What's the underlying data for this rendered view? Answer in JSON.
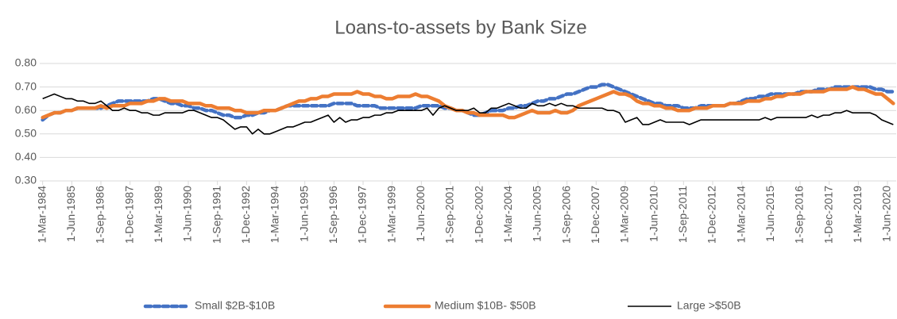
{
  "chart_data": {
    "type": "line",
    "title": "Loans-to-assets by Bank Size",
    "categories": [
      "1-Mar-1984",
      null,
      null,
      null,
      null,
      "1-Jun-1985",
      null,
      null,
      null,
      null,
      "1-Sep-1986",
      null,
      null,
      null,
      null,
      "1-Dec-1987",
      null,
      null,
      null,
      null,
      "1-Mar-1989",
      null,
      null,
      null,
      null,
      "1-Jun-1990",
      null,
      null,
      null,
      null,
      "1-Sep-1991",
      null,
      null,
      null,
      null,
      "1-Dec-1992",
      null,
      null,
      null,
      null,
      "1-Mar-1994",
      null,
      null,
      null,
      null,
      "1-Jun-1995",
      null,
      null,
      null,
      null,
      "1-Sep-1996",
      null,
      null,
      null,
      null,
      "1-Dec-1997",
      null,
      null,
      null,
      null,
      "1-Mar-1999",
      null,
      null,
      null,
      null,
      "1-Jun-2000",
      null,
      null,
      null,
      null,
      "1-Sep-2001",
      null,
      null,
      null,
      null,
      "1-Dec-2002",
      null,
      null,
      null,
      null,
      "1-Mar-2004",
      null,
      null,
      null,
      null,
      "1-Jun-2005",
      null,
      null,
      null,
      null,
      "1-Sep-2006",
      null,
      null,
      null,
      null,
      "1-Dec-2007",
      null,
      null,
      null,
      null,
      "1-Mar-2009",
      null,
      null,
      null,
      null,
      "1-Jun-2010",
      null,
      null,
      null,
      null,
      "1-Sep-2011",
      null,
      null,
      null,
      null,
      "1-Dec-2012",
      null,
      null,
      null,
      null,
      "1-Mar-2014",
      null,
      null,
      null,
      null,
      "1-Jun-2015",
      null,
      null,
      null,
      null,
      "1-Sep-2016",
      null,
      null,
      null,
      null,
      "1-Dec-2017",
      null,
      null,
      null,
      null,
      "1-Mar-2019",
      null,
      null,
      null,
      null,
      "1-Jun-2020",
      null
    ],
    "series": [
      {
        "name": "Small $2B-$10B",
        "color": "#4472c4",
        "values": [
          0.56,
          0.58,
          0.59,
          0.59,
          0.6,
          0.6,
          0.61,
          0.61,
          0.61,
          0.61,
          0.61,
          0.62,
          0.63,
          0.64,
          0.64,
          0.64,
          0.64,
          0.64,
          0.64,
          0.65,
          0.65,
          0.64,
          0.63,
          0.63,
          0.62,
          0.62,
          0.61,
          0.61,
          0.6,
          0.6,
          0.59,
          0.58,
          0.58,
          0.57,
          0.57,
          0.58,
          0.58,
          0.59,
          0.59,
          0.6,
          0.6,
          0.61,
          0.62,
          0.62,
          0.62,
          0.62,
          0.62,
          0.62,
          0.62,
          0.62,
          0.63,
          0.63,
          0.63,
          0.63,
          0.62,
          0.62,
          0.62,
          0.62,
          0.61,
          0.61,
          0.61,
          0.61,
          0.61,
          0.61,
          0.61,
          0.62,
          0.62,
          0.62,
          0.62,
          0.61,
          0.61,
          0.6,
          0.6,
          0.59,
          0.58,
          0.58,
          0.59,
          0.6,
          0.6,
          0.6,
          0.61,
          0.61,
          0.62,
          0.62,
          0.63,
          0.64,
          0.64,
          0.65,
          0.65,
          0.66,
          0.67,
          0.67,
          0.68,
          0.69,
          0.7,
          0.7,
          0.71,
          0.71,
          0.7,
          0.69,
          0.68,
          0.67,
          0.66,
          0.65,
          0.64,
          0.63,
          0.63,
          0.62,
          0.62,
          0.62,
          0.61,
          0.61,
          0.61,
          0.62,
          0.62,
          0.62,
          0.62,
          0.62,
          0.63,
          0.63,
          0.64,
          0.65,
          0.65,
          0.66,
          0.66,
          0.67,
          0.67,
          0.67,
          0.67,
          0.67,
          0.68,
          0.68,
          0.68,
          0.69,
          0.69,
          0.69,
          0.7,
          0.7,
          0.7,
          0.7,
          0.7,
          0.7,
          0.7,
          0.69,
          0.69,
          0.68,
          0.68
        ]
      },
      {
        "name": "Medium $10B- $50B",
        "color": "#ed7d31",
        "values": [
          0.57,
          0.58,
          0.59,
          0.59,
          0.6,
          0.6,
          0.61,
          0.61,
          0.61,
          0.61,
          0.62,
          0.61,
          0.62,
          0.62,
          0.62,
          0.63,
          0.63,
          0.63,
          0.64,
          0.64,
          0.65,
          0.65,
          0.64,
          0.64,
          0.64,
          0.63,
          0.63,
          0.63,
          0.62,
          0.62,
          0.61,
          0.61,
          0.61,
          0.6,
          0.6,
          0.59,
          0.59,
          0.59,
          0.6,
          0.6,
          0.6,
          0.61,
          0.62,
          0.63,
          0.64,
          0.64,
          0.65,
          0.65,
          0.66,
          0.66,
          0.67,
          0.67,
          0.67,
          0.67,
          0.68,
          0.67,
          0.67,
          0.66,
          0.66,
          0.65,
          0.65,
          0.66,
          0.66,
          0.66,
          0.67,
          0.66,
          0.66,
          0.65,
          0.64,
          0.62,
          0.61,
          0.6,
          0.6,
          0.59,
          0.59,
          0.58,
          0.58,
          0.58,
          0.58,
          0.58,
          0.57,
          0.57,
          0.58,
          0.59,
          0.6,
          0.59,
          0.59,
          0.59,
          0.6,
          0.59,
          0.59,
          0.6,
          0.62,
          0.63,
          0.64,
          0.65,
          0.66,
          0.67,
          0.68,
          0.67,
          0.67,
          0.66,
          0.64,
          0.63,
          0.63,
          0.62,
          0.62,
          0.61,
          0.61,
          0.6,
          0.6,
          0.6,
          0.61,
          0.61,
          0.61,
          0.62,
          0.62,
          0.62,
          0.63,
          0.63,
          0.63,
          0.64,
          0.64,
          0.64,
          0.65,
          0.65,
          0.66,
          0.66,
          0.67,
          0.67,
          0.67,
          0.68,
          0.68,
          0.68,
          0.68,
          0.69,
          0.69,
          0.69,
          0.69,
          0.7,
          0.69,
          0.69,
          0.68,
          0.67,
          0.67,
          0.65,
          0.63
        ]
      },
      {
        "name": "Large >$50B",
        "color": "#000000",
        "values": [
          0.65,
          0.66,
          0.67,
          0.66,
          0.65,
          0.65,
          0.64,
          0.64,
          0.63,
          0.63,
          0.64,
          0.62,
          0.6,
          0.6,
          0.61,
          0.6,
          0.6,
          0.59,
          0.59,
          0.58,
          0.58,
          0.59,
          0.59,
          0.59,
          0.59,
          0.6,
          0.6,
          0.59,
          0.58,
          0.57,
          0.57,
          0.56,
          0.54,
          0.52,
          0.53,
          0.53,
          0.5,
          0.52,
          0.5,
          0.5,
          0.51,
          0.52,
          0.53,
          0.53,
          0.54,
          0.55,
          0.55,
          0.56,
          0.57,
          0.58,
          0.55,
          0.57,
          0.55,
          0.56,
          0.56,
          0.57,
          0.57,
          0.58,
          0.58,
          0.59,
          0.59,
          0.6,
          0.6,
          0.6,
          0.6,
          0.6,
          0.61,
          0.58,
          0.61,
          0.62,
          0.61,
          0.6,
          0.6,
          0.6,
          0.61,
          0.59,
          0.59,
          0.61,
          0.61,
          0.62,
          0.63,
          0.62,
          0.61,
          0.61,
          0.63,
          0.62,
          0.62,
          0.63,
          0.62,
          0.63,
          0.62,
          0.62,
          0.61,
          0.61,
          0.61,
          0.61,
          0.61,
          0.6,
          0.6,
          0.59,
          0.55,
          0.56,
          0.57,
          0.54,
          0.54,
          0.55,
          0.56,
          0.55,
          0.55,
          0.55,
          0.55,
          0.54,
          0.55,
          0.56,
          0.56,
          0.56,
          0.56,
          0.56,
          0.56,
          0.56,
          0.56,
          0.56,
          0.56,
          0.56,
          0.57,
          0.56,
          0.57,
          0.57,
          0.57,
          0.57,
          0.57,
          0.57,
          0.58,
          0.57,
          0.58,
          0.58,
          0.59,
          0.59,
          0.6,
          0.59,
          0.59,
          0.59,
          0.59,
          0.58,
          0.56,
          0.55,
          0.54
        ]
      }
    ],
    "ylim": [
      0.3,
      0.8
    ],
    "yticks": [
      {
        "value": 0.3,
        "label": "0.30"
      },
      {
        "value": 0.4,
        "label": "0.40"
      },
      {
        "value": 0.5,
        "label": "0.50"
      },
      {
        "value": 0.6,
        "label": "0.60"
      },
      {
        "value": 0.7,
        "label": "0.70"
      },
      {
        "value": 0.8,
        "label": "0.80"
      }
    ],
    "grid": true,
    "legend": "bottom"
  }
}
